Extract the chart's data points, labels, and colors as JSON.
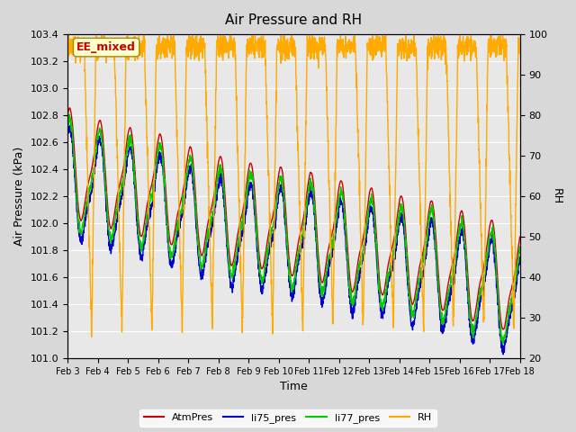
{
  "title": "Air Pressure and RH",
  "xlabel": "Time",
  "ylabel_left": "Air Pressure (kPa)",
  "ylabel_right": "RH",
  "ylim_left": [
    101.0,
    103.4
  ],
  "ylim_right": [
    20,
    100
  ],
  "yticks_left": [
    101.0,
    101.2,
    101.4,
    101.6,
    101.8,
    102.0,
    102.2,
    102.4,
    102.6,
    102.8,
    103.0,
    103.2,
    103.4
  ],
  "yticks_right": [
    20,
    30,
    40,
    50,
    60,
    70,
    80,
    90,
    100
  ],
  "xtick_labels": [
    "Feb 3",
    "Feb 4",
    "Feb 5",
    "Feb 6",
    "Feb 7",
    "Feb 8",
    "Feb 9",
    "Feb 10",
    "Feb 11",
    "Feb 12",
    "Feb 13",
    "Feb 14",
    "Feb 15",
    "Feb 16",
    "Feb 17",
    "Feb 18"
  ],
  "legend_labels": [
    "AtmPres",
    "li75_pres",
    "li77_pres",
    "RH"
  ],
  "line_colors": [
    "#cc0000",
    "#0000cc",
    "#00cc00",
    "#ffaa00"
  ],
  "annotation_text": "EE_mixed",
  "annotation_color": "#cc0000",
  "annotation_bg": "#ffffcc",
  "n_days": 15,
  "seed": 42
}
